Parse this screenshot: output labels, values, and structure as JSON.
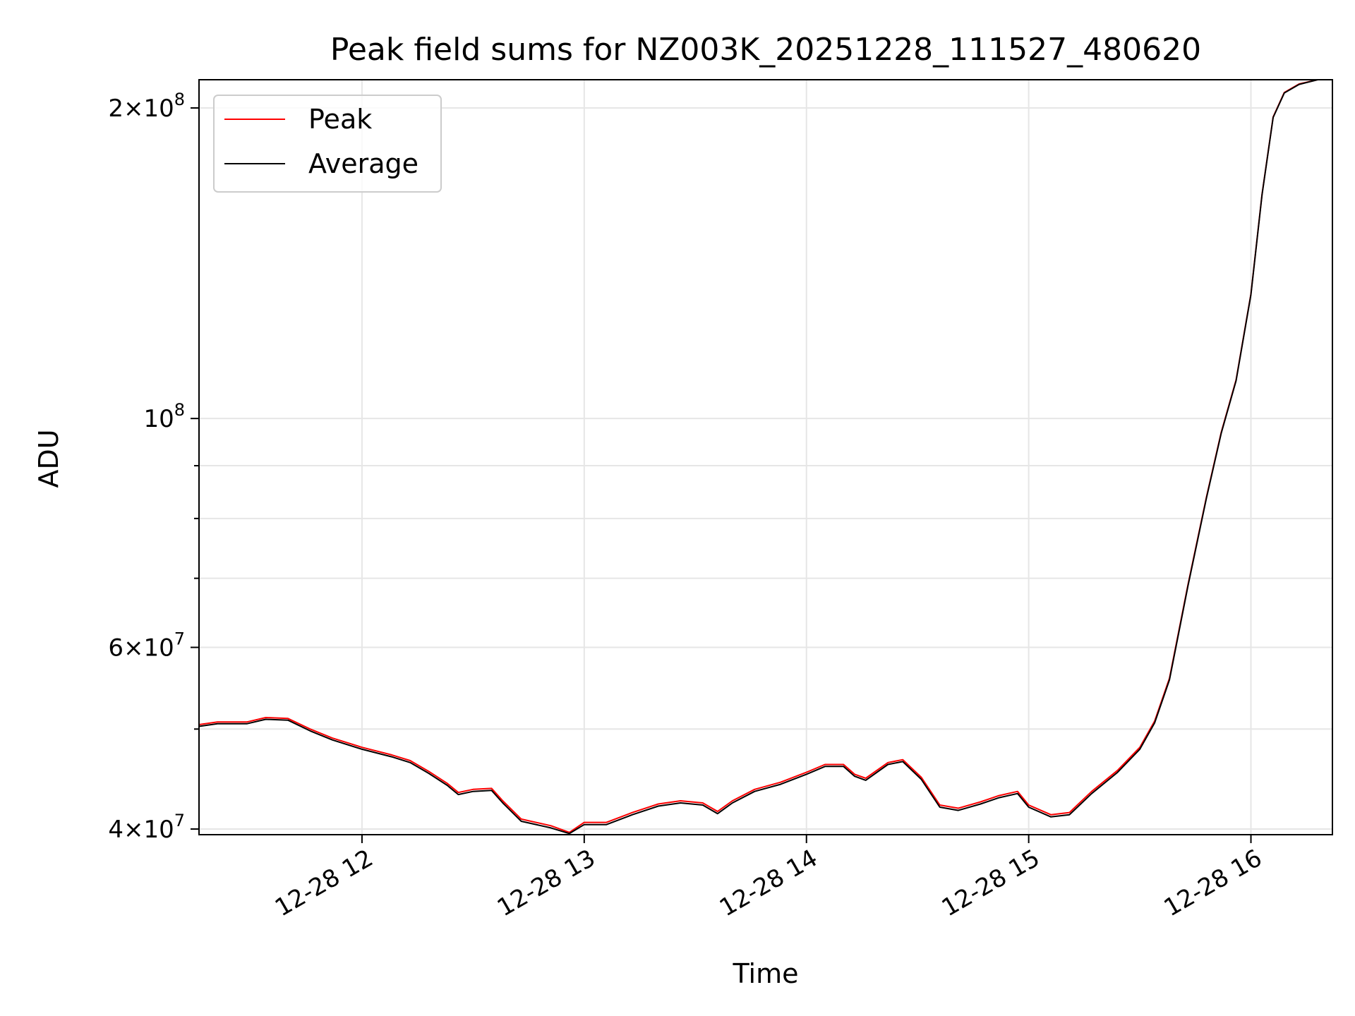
{
  "chart_data": {
    "type": "line",
    "title": "Peak field sums for NZ003K_20251228_111527_480620",
    "xlabel": "Time",
    "ylabel": "ADU",
    "x_range": [
      "2025-12-28 11:16",
      "2025-12-28 16:22"
    ],
    "y_scale": "log",
    "ylim": [
      39500000,
      213000000
    ],
    "grid": true,
    "legend": {
      "placement": "upper-left"
    },
    "x_ticks": [
      {
        "time": "2025-12-28 12:00",
        "label": "12-28 12"
      },
      {
        "time": "2025-12-28 13:00",
        "label": "12-28 13"
      },
      {
        "time": "2025-12-28 14:00",
        "label": "12-28 14"
      },
      {
        "time": "2025-12-28 15:00",
        "label": "12-28 15"
      },
      {
        "time": "2025-12-28 16:00",
        "label": "12-28 16"
      }
    ],
    "y_ticks": [
      {
        "value": 40000000,
        "mantissa": "4",
        "exponent": "7"
      },
      {
        "value": 60000000,
        "mantissa": "6",
        "exponent": "7"
      },
      {
        "value": 100000000,
        "mantissa": "",
        "exponent": "8"
      },
      {
        "value": 200000000,
        "mantissa": "2",
        "exponent": "8"
      }
    ],
    "y_minor_ticks": [
      50000000,
      70000000,
      80000000,
      90000000
    ],
    "series": [
      {
        "name": "Peak",
        "color": "#ff0000",
        "points": [
          [
            "2025-12-28 11:16",
            50500000
          ],
          [
            "2025-12-28 11:21",
            50800000
          ],
          [
            "2025-12-28 11:29",
            50800000
          ],
          [
            "2025-12-28 11:34",
            51300000
          ],
          [
            "2025-12-28 11:40",
            51200000
          ],
          [
            "2025-12-28 11:46",
            50000000
          ],
          [
            "2025-12-28 11:52",
            49000000
          ],
          [
            "2025-12-28 12:00",
            48000000
          ],
          [
            "2025-12-28 12:08",
            47200000
          ],
          [
            "2025-12-28 12:13",
            46600000
          ],
          [
            "2025-12-28 12:18",
            45500000
          ],
          [
            "2025-12-28 12:23",
            44300000
          ],
          [
            "2025-12-28 12:26",
            43400000
          ],
          [
            "2025-12-28 12:30",
            43700000
          ],
          [
            "2025-12-28 12:35",
            43800000
          ],
          [
            "2025-12-28 12:38",
            42600000
          ],
          [
            "2025-12-28 12:43",
            40900000
          ],
          [
            "2025-12-28 12:51",
            40300000
          ],
          [
            "2025-12-28 12:56",
            39700000
          ],
          [
            "2025-12-28 13:00",
            40600000
          ],
          [
            "2025-12-28 13:06",
            40600000
          ],
          [
            "2025-12-28 13:13",
            41500000
          ],
          [
            "2025-12-28 13:20",
            42300000
          ],
          [
            "2025-12-28 13:26",
            42600000
          ],
          [
            "2025-12-28 13:32",
            42400000
          ],
          [
            "2025-12-28 13:36",
            41600000
          ],
          [
            "2025-12-28 13:40",
            42600000
          ],
          [
            "2025-12-28 13:46",
            43700000
          ],
          [
            "2025-12-28 13:53",
            44400000
          ],
          [
            "2025-12-28 14:00",
            45400000
          ],
          [
            "2025-12-28 14:05",
            46200000
          ],
          [
            "2025-12-28 14:10",
            46200000
          ],
          [
            "2025-12-28 14:13",
            45200000
          ],
          [
            "2025-12-28 14:16",
            44800000
          ],
          [
            "2025-12-28 14:22",
            46400000
          ],
          [
            "2025-12-28 14:26",
            46700000
          ],
          [
            "2025-12-28 14:31",
            44900000
          ],
          [
            "2025-12-28 14:36",
            42200000
          ],
          [
            "2025-12-28 14:41",
            41900000
          ],
          [
            "2025-12-28 14:47",
            42500000
          ],
          [
            "2025-12-28 14:52",
            43100000
          ],
          [
            "2025-12-28 14:57",
            43500000
          ],
          [
            "2025-12-28 15:00",
            42200000
          ],
          [
            "2025-12-28 15:06",
            41300000
          ],
          [
            "2025-12-28 15:11",
            41500000
          ],
          [
            "2025-12-28 15:17",
            43500000
          ],
          [
            "2025-12-28 15:24",
            45600000
          ],
          [
            "2025-12-28 15:30",
            48000000
          ],
          [
            "2025-12-28 15:34",
            50900000
          ],
          [
            "2025-12-28 15:38",
            56000000
          ],
          [
            "2025-12-28 15:43",
            69000000
          ],
          [
            "2025-12-28 15:48",
            84000000
          ],
          [
            "2025-12-28 15:52",
            97000000
          ],
          [
            "2025-12-28 15:56",
            109000000
          ],
          [
            "2025-12-28 16:00",
            132000000
          ],
          [
            "2025-12-28 16:03",
            165000000
          ],
          [
            "2025-12-28 16:06",
            196000000
          ],
          [
            "2025-12-28 16:09",
            207000000
          ],
          [
            "2025-12-28 16:13",
            211000000
          ],
          [
            "2025-12-28 16:18",
            213000000
          ]
        ]
      },
      {
        "name": "Average",
        "color": "#000000",
        "points": [
          [
            "2025-12-28 11:16",
            50300000
          ],
          [
            "2025-12-28 11:21",
            50600000
          ],
          [
            "2025-12-28 11:29",
            50600000
          ],
          [
            "2025-12-28 11:34",
            51100000
          ],
          [
            "2025-12-28 11:40",
            51000000
          ],
          [
            "2025-12-28 11:46",
            49800000
          ],
          [
            "2025-12-28 11:52",
            48800000
          ],
          [
            "2025-12-28 12:00",
            47800000
          ],
          [
            "2025-12-28 12:08",
            47000000
          ],
          [
            "2025-12-28 12:13",
            46400000
          ],
          [
            "2025-12-28 12:18",
            45300000
          ],
          [
            "2025-12-28 12:23",
            44100000
          ],
          [
            "2025-12-28 12:26",
            43200000
          ],
          [
            "2025-12-28 12:30",
            43500000
          ],
          [
            "2025-12-28 12:35",
            43600000
          ],
          [
            "2025-12-28 12:38",
            42400000
          ],
          [
            "2025-12-28 12:43",
            40700000
          ],
          [
            "2025-12-28 12:51",
            40100000
          ],
          [
            "2025-12-28 12:56",
            39600000
          ],
          [
            "2025-12-28 13:00",
            40400000
          ],
          [
            "2025-12-28 13:06",
            40400000
          ],
          [
            "2025-12-28 13:13",
            41300000
          ],
          [
            "2025-12-28 13:20",
            42100000
          ],
          [
            "2025-12-28 13:26",
            42400000
          ],
          [
            "2025-12-28 13:32",
            42200000
          ],
          [
            "2025-12-28 13:36",
            41400000
          ],
          [
            "2025-12-28 13:40",
            42400000
          ],
          [
            "2025-12-28 13:46",
            43500000
          ],
          [
            "2025-12-28 13:53",
            44200000
          ],
          [
            "2025-12-28 14:00",
            45200000
          ],
          [
            "2025-12-28 14:05",
            46000000
          ],
          [
            "2025-12-28 14:10",
            46000000
          ],
          [
            "2025-12-28 14:13",
            45000000
          ],
          [
            "2025-12-28 14:16",
            44600000
          ],
          [
            "2025-12-28 14:22",
            46200000
          ],
          [
            "2025-12-28 14:26",
            46500000
          ],
          [
            "2025-12-28 14:31",
            44700000
          ],
          [
            "2025-12-28 14:36",
            42000000
          ],
          [
            "2025-12-28 14:41",
            41700000
          ],
          [
            "2025-12-28 14:47",
            42300000
          ],
          [
            "2025-12-28 14:52",
            42900000
          ],
          [
            "2025-12-28 14:57",
            43300000
          ],
          [
            "2025-12-28 15:00",
            42000000
          ],
          [
            "2025-12-28 15:06",
            41100000
          ],
          [
            "2025-12-28 15:11",
            41300000
          ],
          [
            "2025-12-28 15:17",
            43300000
          ],
          [
            "2025-12-28 15:24",
            45400000
          ],
          [
            "2025-12-28 15:30",
            47800000
          ],
          [
            "2025-12-28 15:34",
            50700000
          ],
          [
            "2025-12-28 15:38",
            55800000
          ],
          [
            "2025-12-28 15:43",
            68800000
          ],
          [
            "2025-12-28 15:48",
            83800000
          ],
          [
            "2025-12-28 15:52",
            96800000
          ],
          [
            "2025-12-28 15:56",
            108800000
          ],
          [
            "2025-12-28 16:00",
            131800000
          ],
          [
            "2025-12-28 16:03",
            164800000
          ],
          [
            "2025-12-28 16:06",
            195800000
          ],
          [
            "2025-12-28 16:09",
            206800000
          ],
          [
            "2025-12-28 16:13",
            210800000
          ],
          [
            "2025-12-28 16:18",
            213000000
          ]
        ]
      }
    ]
  }
}
